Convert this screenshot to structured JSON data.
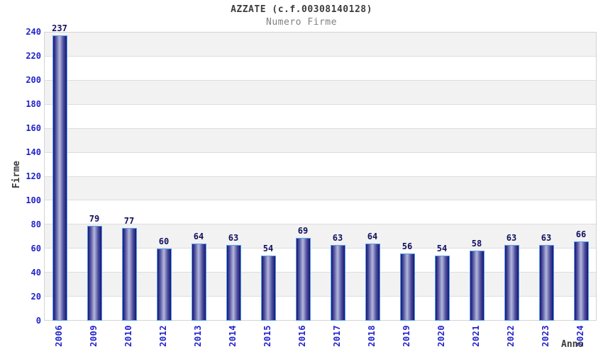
{
  "header": {
    "title": "AZZATE (c.f.00308140128)",
    "subtitle": "Numero Firme"
  },
  "chart_data": {
    "type": "bar",
    "title": "AZZATE (c.f.00308140128)",
    "subtitle": "Numero Firme",
    "xlabel": "Anno",
    "ylabel": "Firme",
    "categories": [
      "2006",
      "2009",
      "2010",
      "2012",
      "2013",
      "2014",
      "2015",
      "2016",
      "2017",
      "2018",
      "2019",
      "2020",
      "2021",
      "2022",
      "2023",
      "2024"
    ],
    "values": [
      237,
      79,
      77,
      60,
      64,
      63,
      54,
      69,
      63,
      64,
      56,
      54,
      58,
      63,
      63,
      66
    ],
    "ylim": [
      0,
      240
    ],
    "yticks": [
      0,
      20,
      40,
      60,
      80,
      100,
      120,
      140,
      160,
      180,
      200,
      220,
      240
    ],
    "grid": "horizontal-bands-alternating",
    "legend": "none"
  },
  "colors": {
    "title": "#3c3c3c",
    "subtitle": "#808080",
    "axis_title": "#3c3c3c",
    "tick_label": "#2222cc",
    "value_label": "#10105e",
    "bar_dark": "#16166e",
    "bar_mid": "#4c4c9e",
    "bar_light": "#b4b8da",
    "bar_border": "#55a0f0",
    "band_gray": "#f2f2f2",
    "band_white": "#ffffff",
    "grid_line": "#dddddd",
    "plot_border": "#d4d4d4",
    "background": "#ffffff"
  }
}
